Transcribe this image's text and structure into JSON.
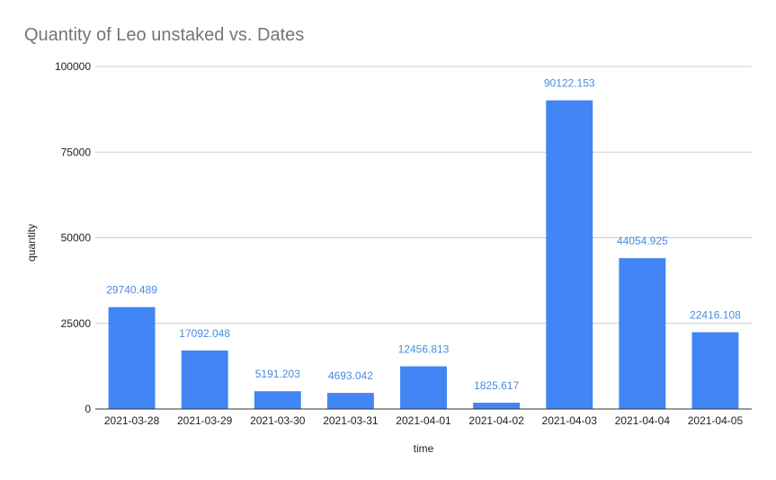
{
  "chart_data": {
    "type": "bar",
    "title": "Quantity of Leo unstaked vs. Dates",
    "xlabel": "time",
    "ylabel": "quantity",
    "categories": [
      "2021-03-28",
      "2021-03-29",
      "2021-03-30",
      "2021-03-31",
      "2021-04-01",
      "2021-04-02",
      "2021-04-03",
      "2021-04-04",
      "2021-04-05"
    ],
    "values": [
      29740.489,
      17092.048,
      5191.203,
      4693.042,
      12456.813,
      1825.617,
      90122.153,
      44054.925,
      22416.108
    ],
    "data_labels": [
      "29740.489",
      "17092.048",
      "5191.203",
      "4693.042",
      "12456.813",
      "1825.617",
      "90122.153",
      "44054.925",
      "22416.108"
    ],
    "ylim": [
      0,
      100000
    ],
    "yticks": [
      0,
      25000,
      50000,
      75000,
      100000
    ],
    "ytick_labels": [
      "0",
      "25000",
      "50000",
      "75000",
      "100000"
    ],
    "grid": true,
    "bar_color": "#4285f4",
    "label_color": "#4a8cde"
  }
}
